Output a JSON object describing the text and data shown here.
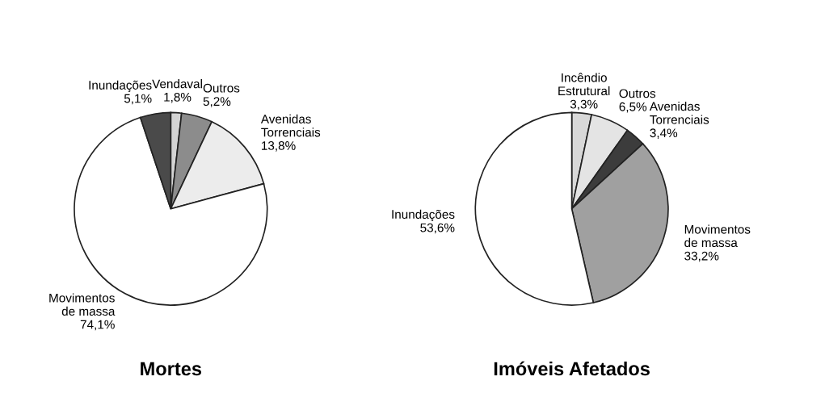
{
  "chart_data": [
    {
      "type": "pie",
      "title": "Mortes",
      "categories": [
        "Vendaval",
        "Outros",
        "Avenidas Torrenciais",
        "Movimentos de massa",
        "Inundações"
      ],
      "values": [
        1.8,
        5.2,
        13.8,
        74.1,
        5.1
      ],
      "value_labels": [
        "1,8%",
        "5,2%",
        "13,8%",
        "74,1%",
        "5,1%"
      ],
      "colors": [
        "#d4d4d4",
        "#8c8c8c",
        "#ececec",
        "#ffffff",
        "#4a4a4a"
      ]
    },
    {
      "type": "pie",
      "title": "Imóveis Afetados",
      "categories": [
        "Incêndio Estrutural",
        "Outros",
        "Avenidas Torrenciais",
        "Movimentos de massa",
        "Inundações"
      ],
      "values": [
        3.3,
        6.5,
        3.4,
        33.2,
        53.6
      ],
      "value_labels": [
        "3,3%",
        "6,5%",
        "3,4%",
        "33,2%",
        "53,6%"
      ],
      "colors": [
        "#d8d8d8",
        "#e4e4e4",
        "#3c3c3c",
        "#a0a0a0",
        "#ffffff"
      ]
    }
  ]
}
